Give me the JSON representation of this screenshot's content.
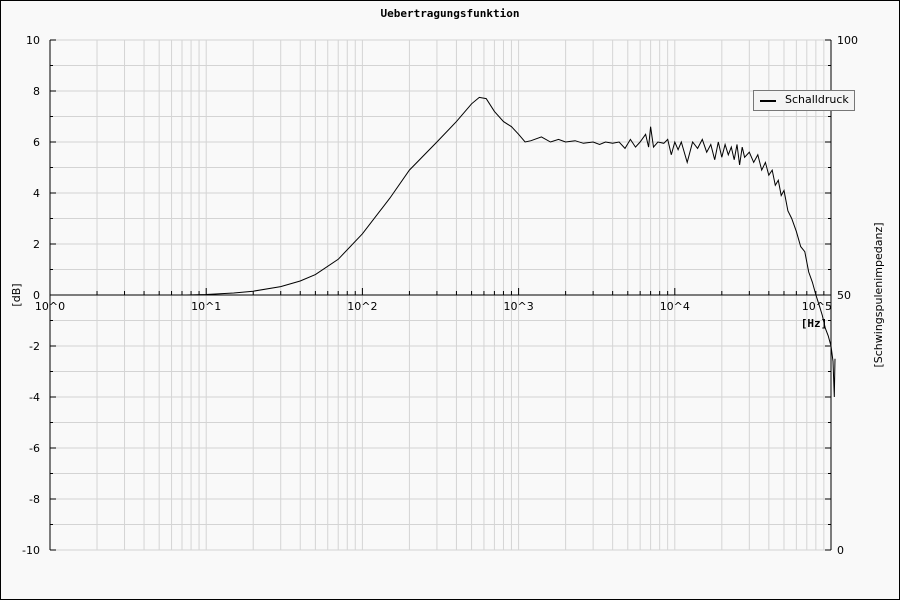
{
  "chart_data": {
    "type": "line",
    "title": "Uebertragungsfunktion",
    "xlabel": "[Hz]",
    "ylabel": "[dB]",
    "y2label": "[Schwingspulenimpedanz]",
    "xscale": "log",
    "xlim": [
      1,
      100000
    ],
    "ylim": [
      -10,
      10
    ],
    "y2lim": [
      0,
      100
    ],
    "xticks": [
      "10^0",
      "10^1",
      "10^2",
      "10^3",
      "10^4",
      "10^5"
    ],
    "yticks": [
      "10",
      "8",
      "6",
      "4",
      "2",
      "0",
      "-2",
      "-4",
      "-6",
      "-8",
      "-10"
    ],
    "y2ticks": [
      "100",
      "50",
      "0"
    ],
    "grid": true,
    "legend_position": "top-right",
    "series": [
      {
        "name": "Schalldruck",
        "color": "#000000",
        "x": [
          7.4,
          10,
          15,
          20,
          30,
          40,
          50,
          70,
          100,
          150,
          200,
          300,
          400,
          500,
          560,
          620,
          700,
          800,
          900,
          1000,
          1100,
          1200,
          1400,
          1600,
          1800,
          2000,
          2300,
          2600,
          3000,
          3300,
          3600,
          4000,
          4400,
          4800,
          5200,
          5600,
          6000,
          6500,
          6800,
          7000,
          7300,
          7800,
          8500,
          9000,
          9500,
          10000,
          10500,
          11000,
          12000,
          13000,
          14000,
          15000,
          16000,
          17000,
          18000,
          19000,
          20000,
          21000,
          22000,
          23000,
          24000,
          25000,
          26000,
          27000,
          28000,
          30000,
          32000,
          34000,
          36000,
          38000,
          40000,
          42000,
          44000,
          46000,
          48000,
          50000,
          53000,
          56000,
          60000,
          64000,
          68000,
          72000,
          76000,
          80000,
          84000,
          88000,
          92000,
          96000,
          100000,
          103000,
          105000,
          106000
        ],
        "y": [
          0,
          0.02,
          0.08,
          0.15,
          0.33,
          0.55,
          0.8,
          1.4,
          2.4,
          3.8,
          4.9,
          6.0,
          6.8,
          7.5,
          7.75,
          7.7,
          7.2,
          6.8,
          6.6,
          6.3,
          6.0,
          6.05,
          6.2,
          6.0,
          6.1,
          6.0,
          6.05,
          5.95,
          6.0,
          5.9,
          6.0,
          5.95,
          6.0,
          5.75,
          6.1,
          5.8,
          6.0,
          6.3,
          5.8,
          6.6,
          5.8,
          6.0,
          5.95,
          6.1,
          5.5,
          6.0,
          5.7,
          6.0,
          5.2,
          6.0,
          5.75,
          6.1,
          5.6,
          5.9,
          5.3,
          6.0,
          5.4,
          5.9,
          5.5,
          5.8,
          5.3,
          5.9,
          5.1,
          5.8,
          5.4,
          5.6,
          5.2,
          5.5,
          4.9,
          5.2,
          4.7,
          4.9,
          4.3,
          4.5,
          3.9,
          4.1,
          3.3,
          3.0,
          2.5,
          1.9,
          1.7,
          0.9,
          0.5,
          0.0,
          -0.4,
          -0.8,
          -1.3,
          -1.6,
          -2.0,
          -2.6,
          -4.0,
          -2.5
        ]
      }
    ]
  }
}
